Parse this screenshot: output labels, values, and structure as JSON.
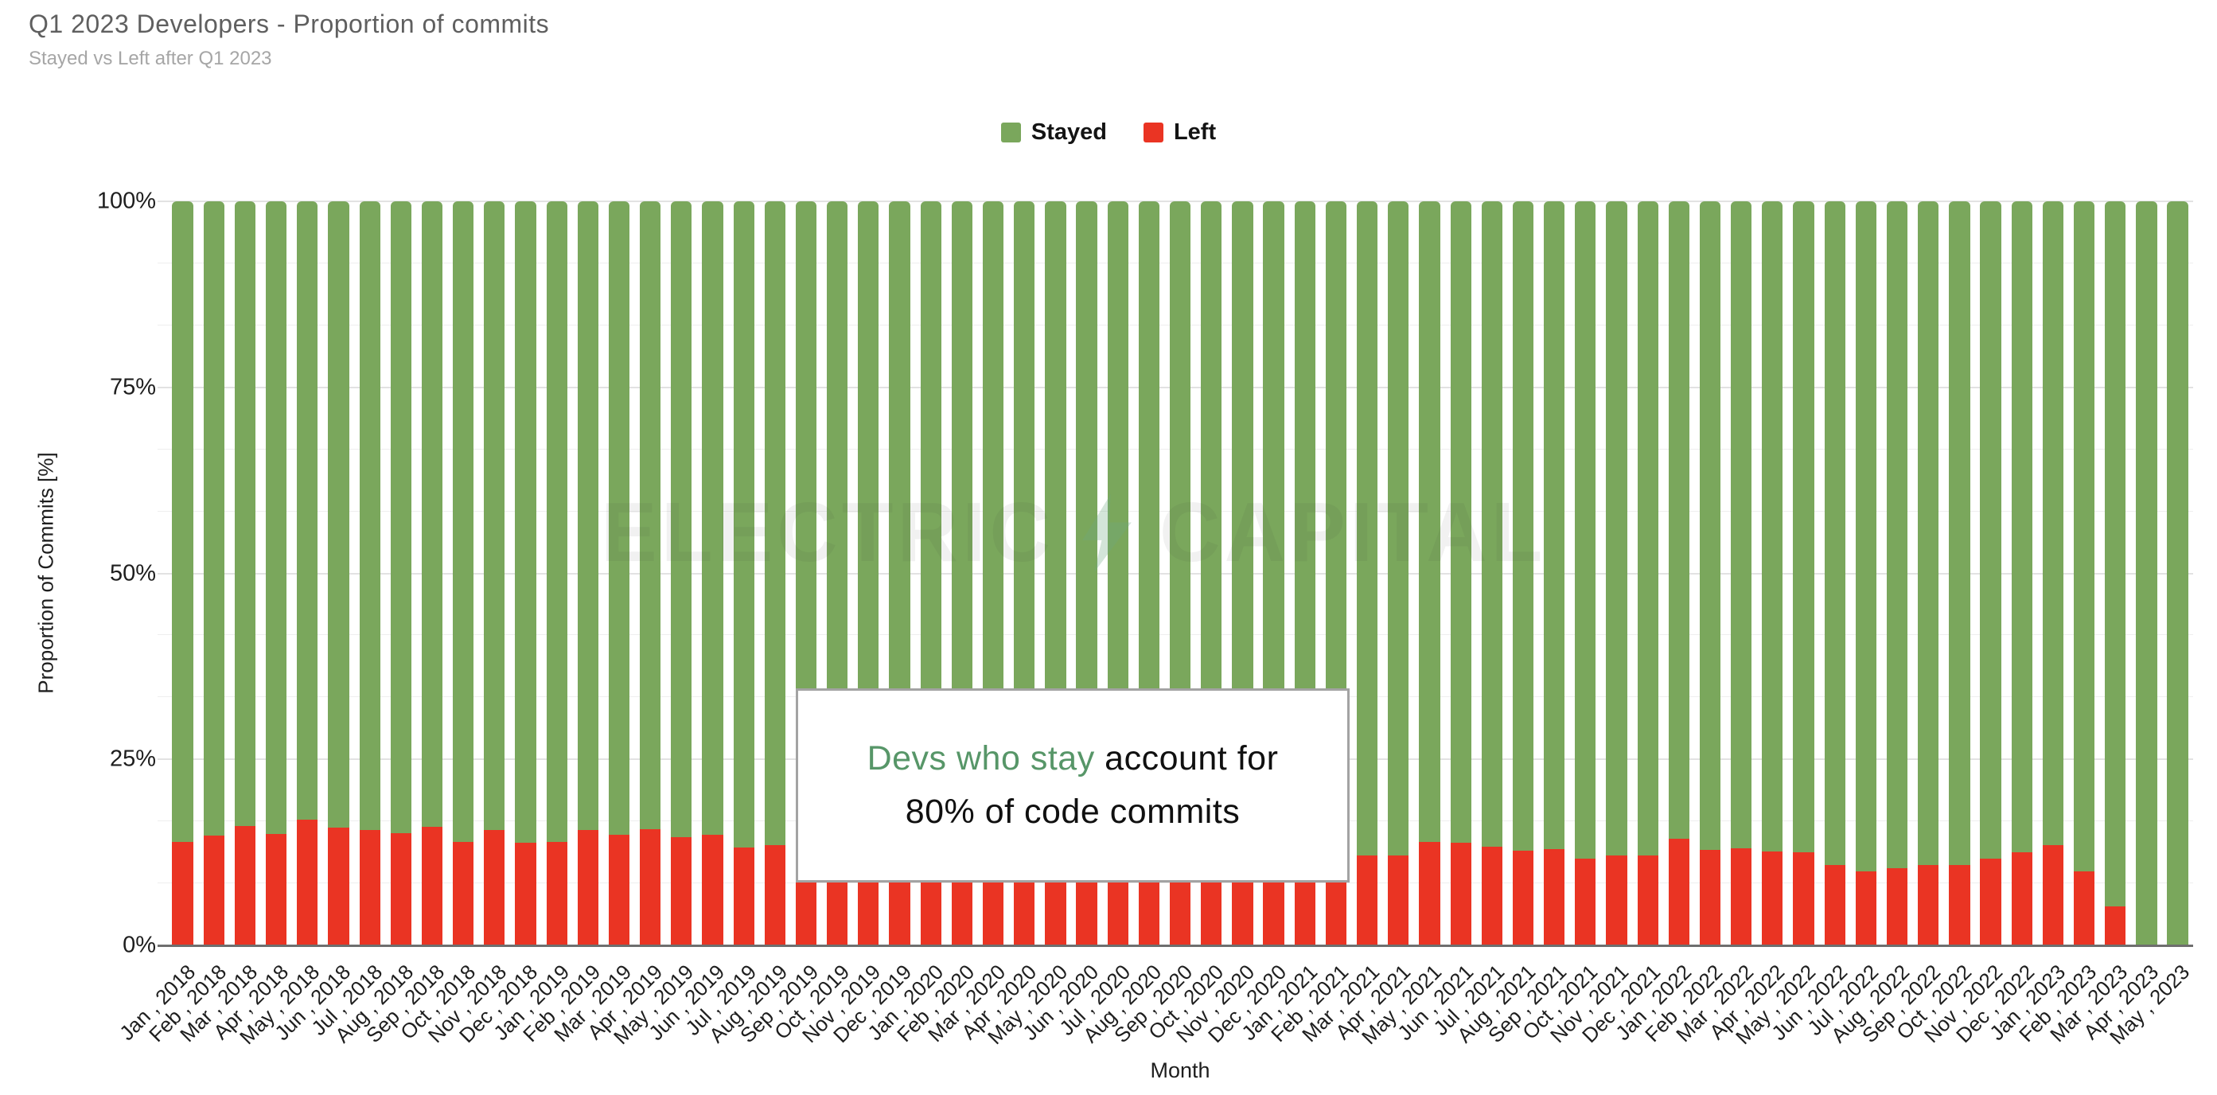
{
  "title": "Q1 2023 Developers - Proportion of commits",
  "subtitle": "Stayed vs Left after Q1 2023",
  "legend": [
    {
      "label": "Stayed",
      "color": "#7aa75c"
    },
    {
      "label": "Left",
      "color": "#ea3423"
    }
  ],
  "axes": {
    "y_title": "Proportion of Commits [%]",
    "x_title": "Month",
    "y_ticks": [
      "100%",
      "75%",
      "50%",
      "25%",
      "0%"
    ]
  },
  "watermark": {
    "word_left": "ELECTRIC",
    "word_right": "CAPITAL",
    "bolt_icon": "lightning-bolt"
  },
  "annotation": {
    "highlight": "Devs who stay",
    "rest_line1": " account for",
    "line2": "80% of code commits",
    "highlight_color": "#579668"
  },
  "colors": {
    "stayed": "#7aa75c",
    "left": "#ea3423",
    "baseline": "#6e6e6e",
    "grid_major": "#e2e2e2",
    "grid_minor": "#eeeeee",
    "annotation_green": "#579668"
  },
  "chart_data": {
    "type": "bar",
    "stacked": true,
    "unit": "%",
    "title": "Q1 2023 Developers - Proportion of commits",
    "xlabel": "Month",
    "ylabel": "Proportion of Commits [%]",
    "ylim": [
      0,
      100
    ],
    "grid": "horizontal, minor lines every 8.33%, majors every 25%",
    "legend_position": "top-center",
    "categories": [
      "Jan , 2018",
      "Feb , 2018",
      "Mar , 2018",
      "Apr , 2018",
      "May , 2018",
      "Jun , 2018",
      "Jul , 2018",
      "Aug , 2018",
      "Sep , 2018",
      "Oct , 2018",
      "Nov , 2018",
      "Dec , 2018",
      "Jan , 2019",
      "Feb , 2019",
      "Mar , 2019",
      "Apr , 2019",
      "May , 2019",
      "Jun , 2019",
      "Jul , 2019",
      "Aug , 2019",
      "Sep , 2019",
      "Oct , 2019",
      "Nov , 2019",
      "Dec , 2019",
      "Jan , 2020",
      "Feb , 2020",
      "Mar , 2020",
      "Apr , 2020",
      "May , 2020",
      "Jun , 2020",
      "Jul , 2020",
      "Aug , 2020",
      "Sep , 2020",
      "Oct , 2020",
      "Nov , 2020",
      "Dec , 2020",
      "Jan , 2021",
      "Feb , 2021",
      "Mar , 2021",
      "Apr , 2021",
      "May , 2021",
      "Jun , 2021",
      "Jul , 2021",
      "Aug , 2021",
      "Sep , 2021",
      "Oct , 2021",
      "Nov , 2021",
      "Dec , 2021",
      "Jan , 2022",
      "Feb , 2022",
      "Mar , 2022",
      "Apr , 2022",
      "May , 2022",
      "Jun , 2022",
      "Jul , 2022",
      "Aug , 2022",
      "Sep , 2022",
      "Oct , 2022",
      "Nov , 2022",
      "Dec , 2022",
      "Jan , 2023",
      "Feb , 2023",
      "Mar , 2023",
      "Apr , 2023",
      "May , 2023"
    ],
    "series": [
      {
        "name": "Stayed",
        "color": "#7aa75c",
        "values": [
          86.1,
          85.2,
          84.0,
          85.0,
          83.1,
          84.2,
          84.5,
          84.9,
          84.1,
          86.1,
          84.5,
          86.2,
          86.1,
          84.5,
          85.1,
          84.4,
          85.4,
          85.1,
          86.8,
          86.5,
          86.5,
          85.0,
          86.5,
          86.8,
          86.6,
          87.3,
          87.3,
          87.3,
          87.3,
          86.3,
          86.8,
          86.4,
          86.1,
          87.3,
          87.7,
          87.5,
          87.9,
          87.9,
          87.9,
          87.9,
          86.1,
          86.2,
          86.7,
          87.3,
          87.1,
          88.3,
          87.9,
          87.9,
          85.7,
          87.2,
          87.0,
          87.4,
          87.5,
          89.2,
          90.0,
          89.6,
          89.2,
          89.2,
          88.3,
          87.5,
          86.5,
          90.0,
          94.8,
          100,
          100
        ]
      },
      {
        "name": "Left",
        "color": "#ea3423",
        "values": [
          13.9,
          14.8,
          16.0,
          15.0,
          16.9,
          15.8,
          15.5,
          15.1,
          15.9,
          13.9,
          15.5,
          13.8,
          13.9,
          15.5,
          14.9,
          15.6,
          14.6,
          14.9,
          13.2,
          13.5,
          13.5,
          15.0,
          13.5,
          13.2,
          13.4,
          12.7,
          12.7,
          12.7,
          12.7,
          13.7,
          13.2,
          13.6,
          13.9,
          12.7,
          12.3,
          12.5,
          12.1,
          12.1,
          12.1,
          12.1,
          13.9,
          13.8,
          13.3,
          12.7,
          12.9,
          11.7,
          12.1,
          12.1,
          14.3,
          12.8,
          13.0,
          12.6,
          12.5,
          10.8,
          10.0,
          10.4,
          10.8,
          10.8,
          11.7,
          12.5,
          13.5,
          10.0,
          5.2,
          0,
          0
        ]
      }
    ]
  }
}
